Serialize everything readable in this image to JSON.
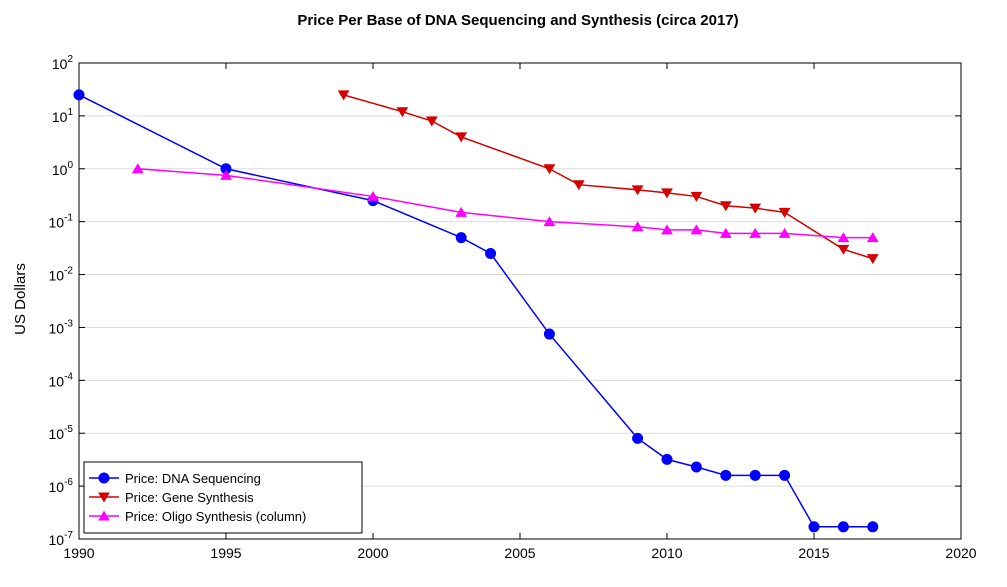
{
  "chart_data": {
    "type": "line",
    "title": "Price Per Base of DNA Sequencing and Synthesis (circa 2017)",
    "xlabel": "",
    "ylabel": "US Dollars",
    "xlim": [
      1990,
      2020
    ],
    "ylim": [
      1e-07,
      100
    ],
    "y_scale": "log",
    "grid": "horizontal",
    "legend_position": "bottom-left",
    "x_ticks": [
      "1990",
      "1995",
      "2000",
      "2005",
      "2010",
      "2015",
      "2020"
    ],
    "y_ticks": [
      {
        "value": 100,
        "base": "10",
        "exp": "2"
      },
      {
        "value": 10,
        "base": "10",
        "exp": "1"
      },
      {
        "value": 1,
        "base": "10",
        "exp": "0"
      },
      {
        "value": 0.1,
        "base": "10",
        "exp": "-1"
      },
      {
        "value": 0.01,
        "base": "10",
        "exp": "-2"
      },
      {
        "value": 0.001,
        "base": "10",
        "exp": "-3"
      },
      {
        "value": 0.0001,
        "base": "10",
        "exp": "-4"
      },
      {
        "value": 1e-05,
        "base": "10",
        "exp": "-5"
      },
      {
        "value": 1e-06,
        "base": "10",
        "exp": "-6"
      },
      {
        "value": 1e-07,
        "base": "10",
        "exp": "-7"
      }
    ],
    "series": [
      {
        "name": "Price: DNA Sequencing",
        "color": "#0000ff",
        "marker": "circle",
        "x": [
          1990,
          1995,
          2000,
          2003,
          2004,
          2006,
          2009,
          2010,
          2011,
          2012,
          2013,
          2014,
          2015,
          2016,
          2017
        ],
        "y": [
          25,
          1.0,
          0.25,
          0.05,
          0.025,
          0.00075,
          8e-06,
          3.2e-06,
          2.3e-06,
          1.6e-06,
          1.6e-06,
          1.6e-06,
          1.7e-07,
          1.7e-07,
          1.7e-07
        ]
      },
      {
        "name": "Price: Gene Synthesis",
        "color": "#d40000",
        "marker": "triangle-down",
        "x": [
          1999,
          2001,
          2002,
          2003,
          2006,
          2007,
          2009,
          2010,
          2011,
          2012,
          2013,
          2014,
          2016,
          2017
        ],
        "y": [
          25,
          12,
          8,
          4,
          1.0,
          0.5,
          0.4,
          0.35,
          0.3,
          0.2,
          0.18,
          0.15,
          0.03,
          0.02
        ]
      },
      {
        "name": "Price: Oligo Synthesis (column)",
        "color": "#ff00ff",
        "marker": "triangle-up",
        "x": [
          1992,
          1995,
          2000,
          2003,
          2006,
          2009,
          2010,
          2011,
          2012,
          2013,
          2014,
          2016,
          2017
        ],
        "y": [
          1.0,
          0.75,
          0.3,
          0.15,
          0.1,
          0.08,
          0.07,
          0.07,
          0.06,
          0.06,
          0.06,
          0.05,
          0.05
        ]
      }
    ]
  }
}
